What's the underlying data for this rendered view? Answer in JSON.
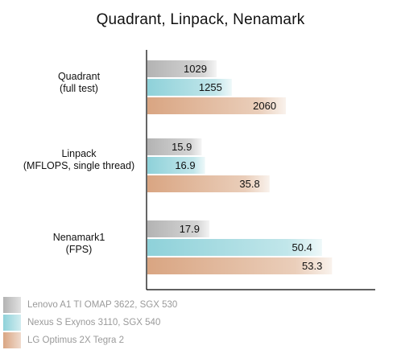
{
  "title": "Quadrant, Linpack, Nenamark",
  "chart_data": {
    "type": "bar",
    "orientation": "horizontal",
    "title": "Quadrant, Linpack, Nenamark",
    "categories": [
      [
        "Quadrant",
        "(full test)"
      ],
      [
        "Linpack",
        "(MFLOPS, single thread)"
      ],
      [
        "Nenamark1",
        "(FPS)"
      ]
    ],
    "series": [
      {
        "name": "Lenovo A1 TI OMAP 3622, SGX 530",
        "values": [
          1029,
          15.9,
          17.9
        ],
        "labels": [
          "1029",
          "15.9",
          "17.9"
        ],
        "color": "#b3b3b3"
      },
      {
        "name": "Nexus S Exynos 3110, SGX 540",
        "values": [
          1255,
          16.9,
          50.4
        ],
        "labels": [
          "1255",
          "16.9",
          "50.4"
        ],
        "color": "#8ed1d9"
      },
      {
        "name": "LG Optimus 2X Tegra 2",
        "values": [
          2060,
          35.8,
          53.3
        ],
        "labels": [
          "2060",
          "35.8",
          "53.3"
        ],
        "color": "#d9a582"
      }
    ],
    "group_max": [
      3400,
      67,
      66
    ],
    "legend_position": "bottom-left",
    "grid": false
  }
}
